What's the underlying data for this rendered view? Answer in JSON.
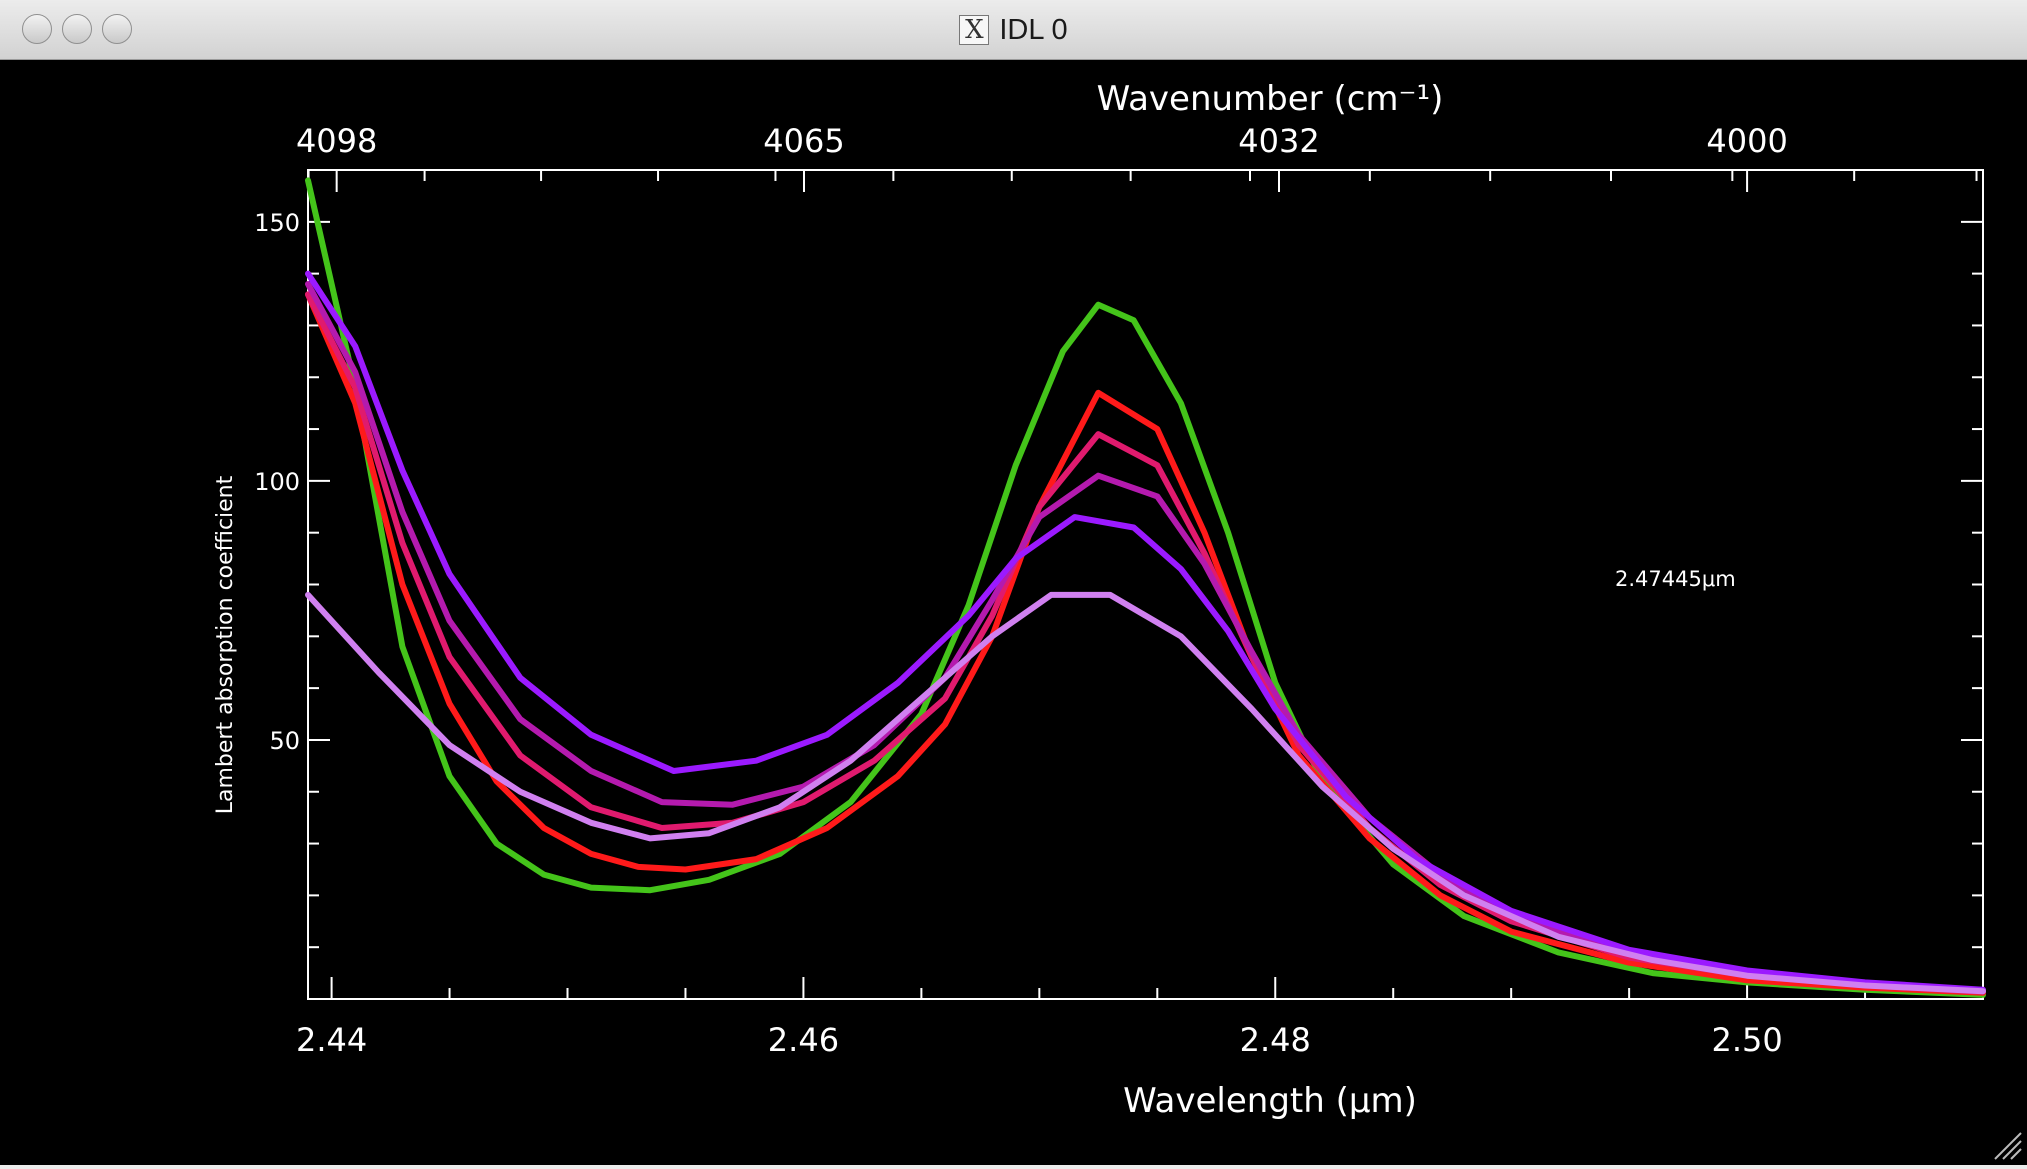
{
  "window": {
    "title": "IDL 0",
    "title_icon": "x11-icon",
    "title_icon_glyph": "X"
  },
  "chart_data": {
    "type": "line",
    "xlabel": "Wavelength (μm)",
    "x2label": "Wavenumber (cm⁻¹)",
    "ylabel": "Lambert absorption coefficient",
    "xlim": [
      2.439,
      2.51
    ],
    "ylim": [
      0,
      160
    ],
    "x_ticks": [
      "2.44",
      "2.46",
      "2.48",
      "2.50"
    ],
    "x_tick_values": [
      2.44,
      2.46,
      2.48,
      2.5
    ],
    "x2_ticks": [
      "4098",
      "4065",
      "4032",
      "4000"
    ],
    "x2_tick_values": [
      4098,
      4065,
      4032,
      4000
    ],
    "y_ticks": [
      "50",
      "100",
      "150"
    ],
    "y_tick_values": [
      50,
      100,
      150
    ],
    "annotation": "2.47445μm",
    "grid": false,
    "background": "#000000",
    "series": [
      {
        "color": "#44c41a",
        "x": [
          2.439,
          2.441,
          2.443,
          2.445,
          2.447,
          2.449,
          2.451,
          2.4535,
          2.456,
          2.459,
          2.462,
          2.465,
          2.467,
          2.469,
          2.471,
          2.4725,
          2.474,
          2.476,
          2.478,
          2.48,
          2.482,
          2.485,
          2.488,
          2.492,
          2.496,
          2.5,
          2.505,
          2.51
        ],
        "y": [
          158,
          118,
          68,
          43,
          30,
          24,
          21.5,
          21,
          23,
          28,
          38,
          55,
          76,
          103,
          125,
          134,
          131,
          115,
          90,
          61,
          42,
          26,
          16,
          9,
          5,
          3.2,
          1.8,
          0.8
        ]
      },
      {
        "color": "#ff1a1a",
        "x": [
          2.439,
          2.441,
          2.443,
          2.445,
          2.447,
          2.449,
          2.451,
          2.453,
          2.455,
          2.458,
          2.461,
          2.464,
          2.466,
          2.468,
          2.47,
          2.4725,
          2.475,
          2.477,
          2.479,
          2.481,
          2.484,
          2.487,
          2.49,
          2.495,
          2.5,
          2.505,
          2.51
        ],
        "y": [
          136,
          115,
          80,
          57,
          42,
          33,
          28,
          25.5,
          25,
          27,
          33,
          43,
          53,
          70,
          95,
          117,
          110,
          90,
          66,
          47,
          31,
          20,
          13,
          7,
          3.6,
          2.2,
          1.2
        ]
      },
      {
        "color": "#e01a6e",
        "x": [
          2.439,
          2.441,
          2.443,
          2.445,
          2.448,
          2.451,
          2.454,
          2.457,
          2.46,
          2.463,
          2.466,
          2.468,
          2.47,
          2.4725,
          2.475,
          2.477,
          2.479,
          2.481,
          2.484,
          2.487,
          2.49,
          2.495,
          2.5,
          2.505,
          2.51
        ],
        "y": [
          136,
          118,
          88,
          66,
          47,
          37,
          33,
          34,
          38,
          46,
          58,
          74,
          95,
          109,
          103,
          86,
          66,
          49,
          33,
          22,
          15,
          8,
          4.5,
          2.6,
          1.4
        ]
      },
      {
        "color": "#b41aae",
        "x": [
          2.439,
          2.441,
          2.443,
          2.445,
          2.448,
          2.451,
          2.454,
          2.457,
          2.46,
          2.463,
          2.466,
          2.468,
          2.47,
          2.4725,
          2.475,
          2.477,
          2.479,
          2.481,
          2.484,
          2.487,
          2.49,
          2.495,
          2.5,
          2.505,
          2.51
        ],
        "y": [
          138,
          121,
          94,
          73,
          54,
          44,
          38,
          37.5,
          41,
          49,
          62,
          77,
          93,
          101,
          97,
          84,
          67,
          51,
          35,
          24,
          16,
          9,
          5,
          2.8,
          1.5
        ]
      },
      {
        "color": "#9b1aff",
        "x": [
          2.439,
          2.441,
          2.443,
          2.445,
          2.448,
          2.451,
          2.4545,
          2.458,
          2.461,
          2.464,
          2.467,
          2.469,
          2.4715,
          2.474,
          2.476,
          2.478,
          2.48,
          2.483,
          2.486,
          2.49,
          2.495,
          2.5,
          2.505,
          2.51
        ],
        "y": [
          140,
          126,
          102,
          82,
          62,
          51,
          44,
          46,
          51,
          61,
          74,
          85,
          93,
          91,
          83,
          71,
          56,
          39,
          27,
          17,
          9.5,
          5.5,
          3.2,
          1.8
        ]
      },
      {
        "color": "#d080f0",
        "x": [
          2.439,
          2.442,
          2.445,
          2.448,
          2.451,
          2.4535,
          2.456,
          2.459,
          2.462,
          2.465,
          2.468,
          2.4705,
          2.473,
          2.476,
          2.479,
          2.482,
          2.485,
          2.488,
          2.492,
          2.496,
          2.5,
          2.505,
          2.51
        ],
        "y": [
          78,
          63,
          49,
          40,
          34,
          31,
          32,
          37,
          46,
          58,
          70,
          78,
          78,
          70,
          56,
          41,
          29,
          20,
          12,
          7.5,
          4.5,
          2.6,
          1.5
        ]
      }
    ]
  }
}
